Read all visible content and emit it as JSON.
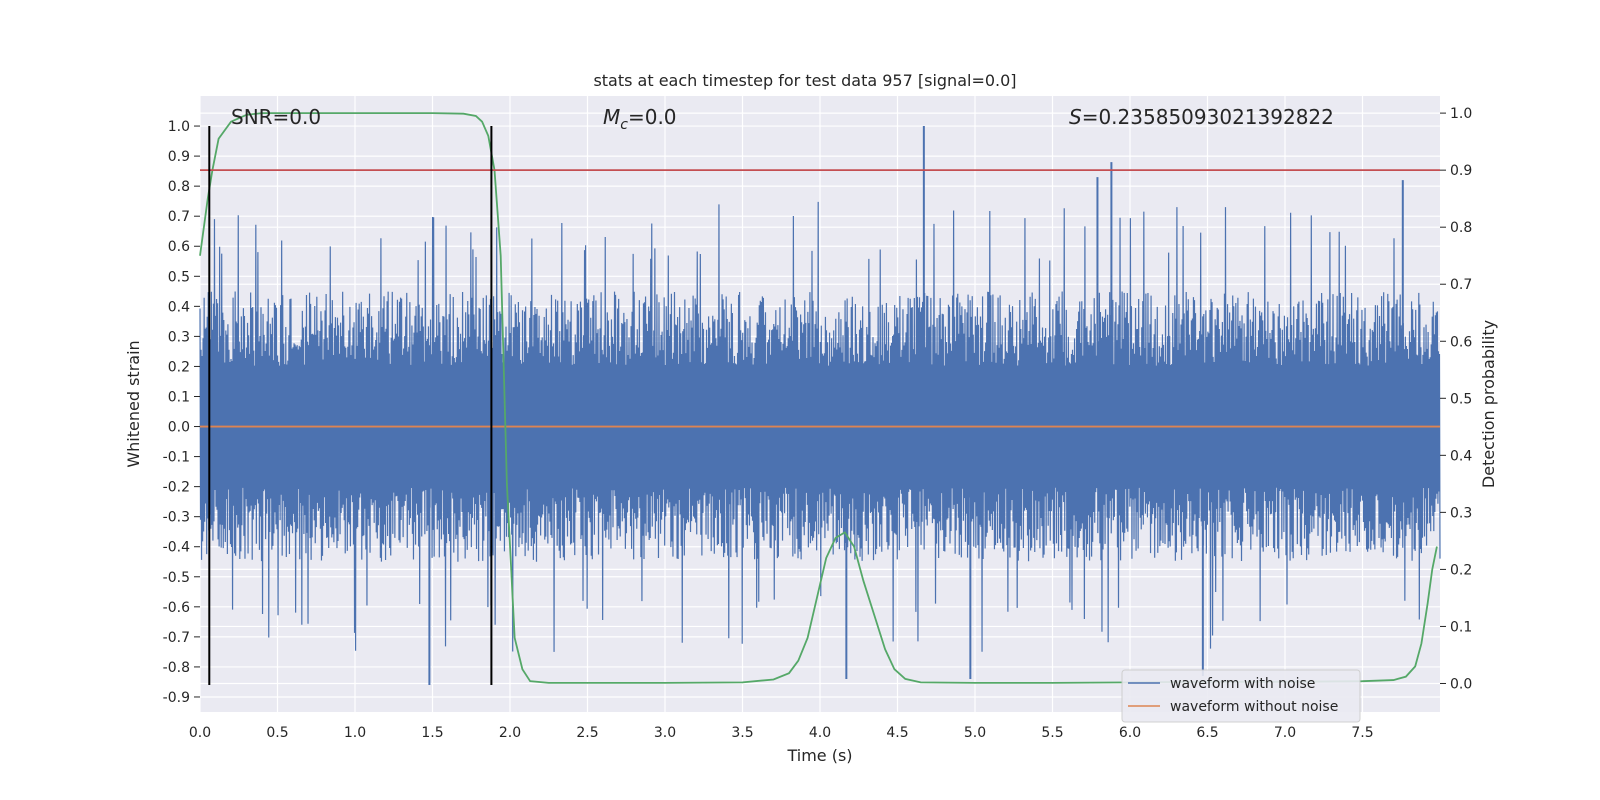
{
  "chart_data": {
    "type": "line",
    "title": "stats at each timestep for test data 957 [signal=0.0]",
    "xlabel": "Time (s)",
    "ylabel": "Whitened strain",
    "ylabel_right": "Detection probability",
    "xlim": [
      0.0,
      8.0
    ],
    "ylim": [
      -0.95,
      1.1
    ],
    "ylim_right": [
      -0.05,
      1.03
    ],
    "x_ticks": [
      "0.0",
      "0.5",
      "1.0",
      "1.5",
      "2.0",
      "2.5",
      "3.0",
      "3.5",
      "4.0",
      "4.5",
      "5.0",
      "5.5",
      "6.0",
      "6.5",
      "7.0",
      "7.5"
    ],
    "y_ticks": [
      "1.0",
      "0.9",
      "0.8",
      "0.7",
      "0.6",
      "0.5",
      "0.4",
      "0.3",
      "0.2",
      "0.1",
      "0.0",
      "-0.1",
      "-0.2",
      "-0.3",
      "-0.4",
      "-0.5",
      "-0.6",
      "-0.7",
      "-0.8",
      "-0.9"
    ],
    "y_ticks_right": [
      "1.0",
      "0.9",
      "0.8",
      "0.7",
      "0.6",
      "0.5",
      "0.4",
      "0.3",
      "0.2",
      "0.1",
      "0.0"
    ],
    "grid": true,
    "legend_position": "bottom-right",
    "annotations": {
      "snr": "SNR=0.0",
      "mc_symbol": "M",
      "mc_sub": "c",
      "mc_value": "=0.0",
      "s_symbol": "S",
      "s_value": "=0.23585093021392822"
    },
    "vertical_lines": [
      0.06,
      1.88
    ],
    "threshold_right": 0.9,
    "noise_envelope": {
      "approx_max_abs": 0.45,
      "peak_spikes": [
        {
          "x": 4.67,
          "y": 1.0
        },
        {
          "x": 5.88,
          "y": 0.88
        },
        {
          "x": 5.79,
          "y": 0.83
        },
        {
          "x": 7.76,
          "y": 0.82
        },
        {
          "x": 1.48,
          "y": -0.86
        },
        {
          "x": 6.47,
          "y": -0.83
        },
        {
          "x": 4.97,
          "y": -0.84
        },
        {
          "x": 4.17,
          "y": -0.84
        }
      ]
    },
    "series": [
      {
        "name": "waveform with noise",
        "color": "#4c72b0",
        "axis": "left",
        "description_values": "dense noise, mostly within ±0.45, spikes up to 1.0"
      },
      {
        "name": "waveform without noise",
        "color": "#dd8452",
        "axis": "left",
        "x": [
          0.0,
          8.0
        ],
        "y": [
          0.0,
          0.0
        ]
      },
      {
        "color": "#55a868",
        "axis": "right",
        "x": [
          0.0,
          0.05,
          0.08,
          0.12,
          0.2,
          0.3,
          0.4,
          0.6,
          1.0,
          1.5,
          1.7,
          1.78,
          1.82,
          1.86,
          1.9,
          1.94,
          1.98,
          2.03,
          2.08,
          2.13,
          2.25,
          2.5,
          3.0,
          3.5,
          3.7,
          3.8,
          3.86,
          3.92,
          3.98,
          4.04,
          4.1,
          4.16,
          4.22,
          4.28,
          4.35,
          4.42,
          4.48,
          4.55,
          4.65,
          5.0,
          5.5,
          6.0,
          6.5,
          7.0,
          7.5,
          7.7,
          7.78,
          7.84,
          7.88,
          7.92,
          7.95,
          7.98
        ],
        "y": [
          0.75,
          0.85,
          0.9,
          0.955,
          0.985,
          0.997,
          1.0,
          1.0,
          1.0,
          1.0,
          0.999,
          0.995,
          0.985,
          0.96,
          0.9,
          0.75,
          0.35,
          0.08,
          0.025,
          0.004,
          0.001,
          0.001,
          0.001,
          0.002,
          0.007,
          0.018,
          0.04,
          0.08,
          0.15,
          0.22,
          0.255,
          0.265,
          0.24,
          0.18,
          0.12,
          0.06,
          0.025,
          0.008,
          0.002,
          0.001,
          0.001,
          0.002,
          0.003,
          0.003,
          0.004,
          0.006,
          0.012,
          0.03,
          0.07,
          0.14,
          0.2,
          0.24
        ]
      },
      {
        "color": "#c44e52",
        "axis": "right",
        "x": [
          0.0,
          8.0
        ],
        "y": [
          0.9,
          0.9
        ]
      }
    ]
  }
}
